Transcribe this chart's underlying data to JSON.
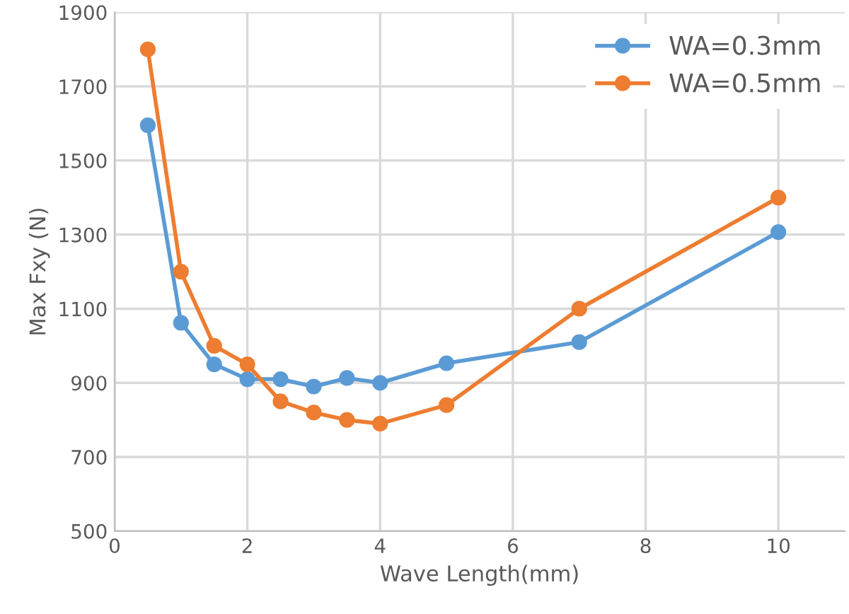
{
  "chart_data": {
    "type": "line",
    "xlabel": "Wave Length(mm)",
    "ylabel": "Max Fxy (N)",
    "x": [
      0.5,
      1,
      1.5,
      2,
      2.5,
      3,
      3.5,
      4,
      5,
      7,
      10
    ],
    "series": [
      {
        "name": "WA=0.3mm",
        "color": "#5b9bd5",
        "values": [
          1595,
          1062,
          950,
          910,
          910,
          890,
          913,
          900,
          953,
          1010,
          1307
        ]
      },
      {
        "name": "WA=0.5mm",
        "color": "#ed7d31",
        "values": [
          1800,
          1200,
          1000,
          950,
          850,
          820,
          800,
          790,
          840,
          1100,
          1400
        ]
      }
    ],
    "xlim": [
      0,
      11
    ],
    "xticks": [
      0,
      2,
      4,
      6,
      8,
      10
    ],
    "ylim": [
      500,
      1900
    ],
    "yticks": [
      500,
      700,
      900,
      1100,
      1300,
      1500,
      1700,
      1900
    ],
    "grid": true,
    "legend": "top right",
    "marker": "circle",
    "line_style": "solid"
  }
}
